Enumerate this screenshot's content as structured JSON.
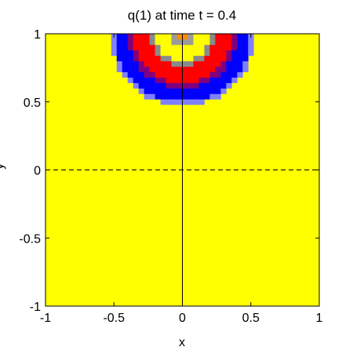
{
  "chart_data": {
    "type": "heatmap",
    "title": "q(1)   at time t = 0.4",
    "xlabel": "x",
    "ylabel": "y",
    "xlim": [
      -1,
      1
    ],
    "ylim": [
      -1,
      1
    ],
    "x_ticks": [
      "-1",
      "-0.5",
      "0",
      "0.5",
      "1"
    ],
    "y_ticks": [
      "-1",
      "-0.5",
      "0",
      "0.5",
      "1"
    ],
    "x_tick_values": [
      -1,
      -0.5,
      0,
      0.5,
      1
    ],
    "y_tick_values": [
      -1,
      -0.5,
      0,
      0.5,
      1
    ],
    "grid_cells": 50,
    "source_point": [
      0,
      1
    ],
    "colormap": [
      {
        "below_radius": 0.06,
        "color": "#ff8c00"
      },
      {
        "below_radius": 0.1,
        "color": "#9a9a9a"
      },
      {
        "below_radius": 0.2,
        "color": "#ffff00"
      },
      {
        "below_radius": 0.24,
        "color": "#8a8a8a"
      },
      {
        "below_radius": 0.36,
        "color": "#ff0000"
      },
      {
        "below_radius": 0.4,
        "color": "#7f007f"
      },
      {
        "below_radius": 0.5,
        "color": "#0000ff"
      },
      {
        "below_radius": 0.53,
        "color": "#8080ff"
      }
    ],
    "background_color": "#ffff00",
    "reference_lines": [
      {
        "orientation": "horizontal",
        "at": 0,
        "style": "dashed",
        "color": "#000000"
      },
      {
        "orientation": "vertical",
        "at": 0,
        "style": "solid",
        "color": "#000000"
      }
    ],
    "grid": false,
    "legend": "none"
  }
}
